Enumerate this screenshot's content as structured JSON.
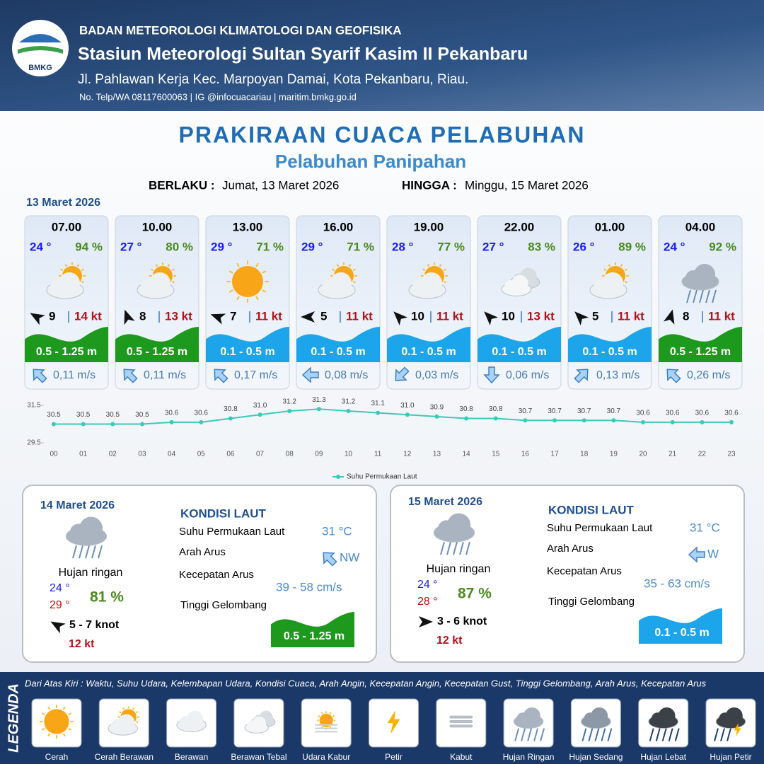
{
  "header": {
    "logo": "BMKG",
    "agency": "BADAN METEOROLOGI KLIMATOLOGI DAN GEOFISIKA",
    "station": "Stasiun Meteorologi Sultan Syarif Kasim II Pekanbaru",
    "address": "Jl. Pahlawan Kerja Kec. Marpoyan Damai, Kota Pekanbaru, Riau.",
    "contact": "No. Telp/WA 08117600063 | IG @infocuacariau | maritim.bmkg.go.id"
  },
  "title": "PRAKIRAAN CUACA PELABUHAN",
  "subtitle": "Pelabuhan Panipahan",
  "validity": {
    "from_label": "BERLAKU :",
    "from": "Jumat, 13 Maret 2026",
    "to_label": "HINGGA :",
    "to": "Minggu, 15 Maret 2026"
  },
  "day1": {
    "date": "13 Maret 2026",
    "forecasts": [
      {
        "time": "07.00",
        "temp": "24 °",
        "humidity": "94 %",
        "wind": "9",
        "gust": "14 kt",
        "wave": "0.5 - 1.25 m",
        "current": "0,11 m/s"
      },
      {
        "time": "10.00",
        "temp": "27 °",
        "humidity": "80 %",
        "wind": "8",
        "gust": "13 kt",
        "wave": "0.5 - 1.25 m",
        "current": "0,11 m/s"
      },
      {
        "time": "13.00",
        "temp": "29 °",
        "humidity": "71 %",
        "wind": "7",
        "gust": "11 kt",
        "wave": "0.1 - 0.5 m",
        "current": "0,17 m/s"
      },
      {
        "time": "16.00",
        "temp": "29 °",
        "humidity": "71 %",
        "wind": "5",
        "gust": "11 kt",
        "wave": "0.1 - 0.5 m",
        "current": "0,08 m/s"
      },
      {
        "time": "19.00",
        "temp": "28 °",
        "humidity": "77 %",
        "wind": "10",
        "gust": "11 kt",
        "wave": "0.1 - 0.5 m",
        "current": "0,03 m/s"
      },
      {
        "time": "22.00",
        "temp": "27 °",
        "humidity": "83 %",
        "wind": "10",
        "gust": "13 kt",
        "wave": "0.1 - 0.5 m",
        "current": "0,06 m/s"
      },
      {
        "time": "01.00",
        "temp": "26 °",
        "humidity": "89 %",
        "wind": "5",
        "gust": "11 kt",
        "wave": "0.1 - 0.5 m",
        "current": "0,13 m/s"
      },
      {
        "time": "04.00",
        "temp": "24 °",
        "humidity": "92 %",
        "wind": "8",
        "gust": "11 kt",
        "wave": "0.5 - 1.25 m",
        "current": "0,26 m/s"
      }
    ]
  },
  "chart_data": {
    "type": "line",
    "categories": [
      "00",
      "01",
      "02",
      "03",
      "04",
      "05",
      "06",
      "07",
      "08",
      "09",
      "10",
      "11",
      "12",
      "13",
      "14",
      "15",
      "16",
      "17",
      "18",
      "19",
      "20",
      "21",
      "22",
      "23"
    ],
    "series": [
      {
        "name": "Suhu Permukaan Laut",
        "color": "#3cc9b9",
        "values": [
          30.5,
          30.5,
          30.5,
          30.5,
          30.6,
          30.6,
          30.8,
          31.0,
          31.2,
          31.3,
          31.2,
          31.1,
          31.0,
          30.9,
          30.8,
          30.8,
          30.7,
          30.7,
          30.7,
          30.7,
          30.6,
          30.6,
          30.6,
          30.6
        ],
        "value_labels": [
          "30.5",
          "30.5",
          "30.5",
          "30.5",
          "30.6",
          "30.6",
          "30.8",
          "31.0",
          "31.2",
          "31.3",
          "31.2",
          "31.1",
          "31.0",
          "30.9",
          "30.8",
          "30.8",
          "30.7",
          "30.7",
          "30.7",
          "30.7",
          "30.6",
          "30.6",
          "30.6",
          "30.6"
        ]
      }
    ],
    "ylim": [
      29.5,
      31.5
    ],
    "yticks": [
      29.5,
      31.5
    ],
    "legend": "bottom"
  },
  "days": [
    {
      "date": "14 Maret 2026",
      "condition": "Hujan ringan",
      "temp_min": "24 °",
      "temp_max": "29 °",
      "humidity": "81 %",
      "wind": "5  - 7 knot",
      "gust": "12 kt",
      "sea_title": "KONDISI LAUT",
      "sst_label": "Suhu Permukaan Laut",
      "sst": "31 °C",
      "current_dir_label": "Arah Arus",
      "current_dir": "NW",
      "current_speed_label": "Kecepatan Arus",
      "current_speed": "39  - 58 cm/s",
      "wave_label": "Tinggi Gelombang",
      "wave": "0.5 - 1.25 m"
    },
    {
      "date": "15 Maret 2026",
      "condition": "Hujan ringan",
      "temp_min": "24 °",
      "temp_max": "28 °",
      "humidity": "87 %",
      "wind": "3  - 6 knot",
      "gust": "12 kt",
      "sea_title": "KONDISI LAUT",
      "sst_label": "Suhu Permukaan Laut",
      "sst": "31 °C",
      "current_dir_label": "Arah Arus",
      "current_dir": "W",
      "current_speed_label": "Kecepatan Arus",
      "current_speed": "35 - 63 cm/s",
      "wave_label": "Tinggi Gelombang",
      "wave": "0.1 - 0.5 m"
    }
  ],
  "legend": {
    "title": "LEGENDA",
    "description": "Dari Atas Kiri : Waktu, Suhu Udara, Kelembapan Udara, Kondisi Cuaca, Arah Angin, Kecepatan Angin, Kecepatan Gust, Tinggi Gelombang, Arah Arus, Kecepatan Arus",
    "items": [
      "Cerah",
      "Cerah Berawan",
      "Berawan",
      "Berawan Tebal",
      "Udara Kabur",
      "Petir",
      "Kabut",
      "Hujan Ringan",
      "Hujan Sedang",
      "Hujan Lebat",
      "Hujan Petir"
    ]
  }
}
